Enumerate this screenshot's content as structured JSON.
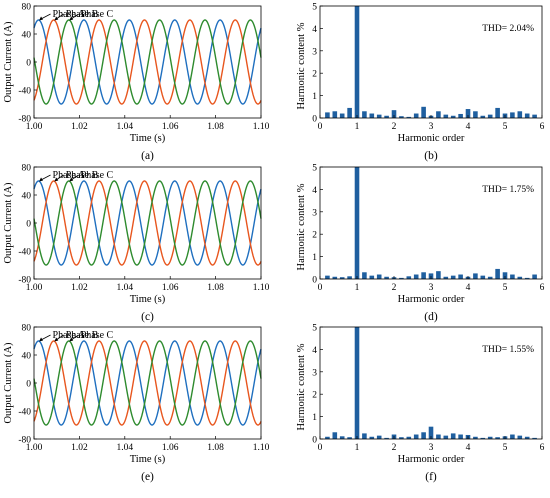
{
  "colors": {
    "phase_a": "#1f6fbf",
    "phase_b": "#e8561e",
    "phase_c": "#2e8b2e",
    "bars": "#1f5f9f",
    "axis": "#000000"
  },
  "chart_data": [
    {
      "id": "a",
      "type": "line",
      "panel_label": "(a)",
      "xlabel": "Time (s)",
      "ylabel": "Output Current (A)",
      "xlim": [
        1.0,
        1.1
      ],
      "ylim": [
        -80,
        80
      ],
      "xticks": [
        1.0,
        1.02,
        1.04,
        1.06,
        1.08,
        1.1
      ],
      "xtick_labels": [
        "1.00",
        "1.02",
        "1.04",
        "1.06",
        "1.08",
        "1.10"
      ],
      "yticks": [
        -80,
        -40,
        0,
        40,
        80
      ],
      "ytick_labels": [
        "-80",
        "-40",
        "0",
        "40",
        "80"
      ],
      "grid": false,
      "frequency_hz": 50,
      "amplitude": 60,
      "phase_a_deg": 0,
      "series": [
        {
          "name": "Phase A",
          "phase_shift_deg": 0
        },
        {
          "name": "Phase B",
          "phase_shift_deg": -120
        },
        {
          "name": "Phase C",
          "phase_shift_deg": 120
        }
      ]
    },
    {
      "id": "b",
      "type": "bar",
      "panel_label": "(b)",
      "xlabel": "Harmonic order",
      "ylabel": "Harmonic content %",
      "xlim": [
        0,
        6
      ],
      "ylim": [
        0,
        5
      ],
      "xticks": [
        0,
        1,
        2,
        3,
        4,
        5,
        6
      ],
      "xtick_labels": [
        "0",
        "1",
        "2",
        "3",
        "4",
        "5",
        "6"
      ],
      "yticks": [
        0,
        1,
        2,
        3,
        4,
        5
      ],
      "ytick_labels": [
        "0",
        "1",
        "2",
        "3",
        "4",
        "5"
      ],
      "annotation": "THD= 2.04%",
      "bar_x_start": 0.2,
      "bar_x_step": 0.2,
      "values": [
        0.25,
        0.3,
        0.2,
        0.45,
        5.2,
        0.3,
        0.2,
        0.15,
        0.1,
        0.35,
        0.08,
        0.05,
        0.2,
        0.5,
        0.1,
        0.3,
        0.15,
        0.1,
        0.18,
        0.4,
        0.3,
        0.1,
        0.15,
        0.45,
        0.2,
        0.25,
        0.3,
        0.2,
        0.15
      ]
    },
    {
      "id": "c",
      "type": "line",
      "panel_label": "(c)",
      "xlabel": "Time (s)",
      "ylabel": "Output Current (A)",
      "xlim": [
        1.0,
        1.1
      ],
      "ylim": [
        -80,
        80
      ],
      "xticks": [
        1.0,
        1.02,
        1.04,
        1.06,
        1.08,
        1.1
      ],
      "xtick_labels": [
        "1.00",
        "1.02",
        "1.04",
        "1.06",
        "1.08",
        "1.10"
      ],
      "yticks": [
        -80,
        -40,
        0,
        40,
        80
      ],
      "ytick_labels": [
        "-80",
        "-40",
        "0",
        "40",
        "80"
      ],
      "grid": false,
      "frequency_hz": 50,
      "amplitude": 60,
      "phase_a_deg": 0,
      "series": [
        {
          "name": "Phase A",
          "phase_shift_deg": 0
        },
        {
          "name": "Phase B",
          "phase_shift_deg": -120
        },
        {
          "name": "Phase C",
          "phase_shift_deg": 120
        }
      ]
    },
    {
      "id": "d",
      "type": "bar",
      "panel_label": "(d)",
      "xlabel": "Harmonic order",
      "ylabel": "Harmonic content %",
      "xlim": [
        0,
        6
      ],
      "ylim": [
        0,
        5
      ],
      "xticks": [
        0,
        1,
        2,
        3,
        4,
        5,
        6
      ],
      "xtick_labels": [
        "0",
        "1",
        "2",
        "3",
        "4",
        "5",
        "6"
      ],
      "yticks": [
        0,
        1,
        2,
        3,
        4,
        5
      ],
      "ytick_labels": [
        "0",
        "1",
        "2",
        "3",
        "4",
        "5"
      ],
      "annotation": "THD= 1.75%",
      "bar_x_start": 0.2,
      "bar_x_step": 0.2,
      "values": [
        0.15,
        0.1,
        0.08,
        0.12,
        5.2,
        0.3,
        0.15,
        0.2,
        0.1,
        0.08,
        0.05,
        0.12,
        0.2,
        0.3,
        0.25,
        0.35,
        0.1,
        0.15,
        0.2,
        0.1,
        0.25,
        0.15,
        0.1,
        0.45,
        0.3,
        0.2,
        0.1,
        0.05,
        0.2
      ]
    },
    {
      "id": "e",
      "type": "line",
      "panel_label": "(e)",
      "xlabel": "Time (s)",
      "ylabel": "Output Current (A)",
      "xlim": [
        1.0,
        1.1
      ],
      "ylim": [
        -80,
        80
      ],
      "xticks": [
        1.0,
        1.02,
        1.04,
        1.06,
        1.08,
        1.1
      ],
      "xtick_labels": [
        "1.00",
        "1.02",
        "1.04",
        "1.06",
        "1.08",
        "1.10"
      ],
      "yticks": [
        -80,
        -40,
        0,
        40,
        80
      ],
      "ytick_labels": [
        "-80",
        "-40",
        "0",
        "40",
        "80"
      ],
      "grid": false,
      "frequency_hz": 50,
      "amplitude": 60,
      "phase_a_deg": 0,
      "series": [
        {
          "name": "Phase A",
          "phase_shift_deg": 0
        },
        {
          "name": "Phase B",
          "phase_shift_deg": -120
        },
        {
          "name": "Phase C",
          "phase_shift_deg": 120
        }
      ]
    },
    {
      "id": "f",
      "type": "bar",
      "panel_label": "(f)",
      "xlabel": "Harmonic order",
      "ylabel": "Harmonic content %",
      "xlim": [
        0,
        6
      ],
      "ylim": [
        0,
        5
      ],
      "xticks": [
        0,
        1,
        2,
        3,
        4,
        5,
        6
      ],
      "xtick_labels": [
        "0",
        "1",
        "2",
        "3",
        "4",
        "5",
        "6"
      ],
      "yticks": [
        0,
        1,
        2,
        3,
        4,
        5
      ],
      "ytick_labels": [
        "0",
        "1",
        "2",
        "3",
        "4",
        "5"
      ],
      "annotation": "THD= 1.55%",
      "bar_x_start": 0.2,
      "bar_x_step": 0.2,
      "values": [
        0.1,
        0.3,
        0.12,
        0.08,
        5.2,
        0.25,
        0.1,
        0.15,
        0.05,
        0.2,
        0.08,
        0.1,
        0.2,
        0.3,
        0.55,
        0.2,
        0.15,
        0.25,
        0.2,
        0.18,
        0.1,
        0.05,
        0.1,
        0.08,
        0.12,
        0.2,
        0.15,
        0.1,
        0.05
      ]
    }
  ]
}
